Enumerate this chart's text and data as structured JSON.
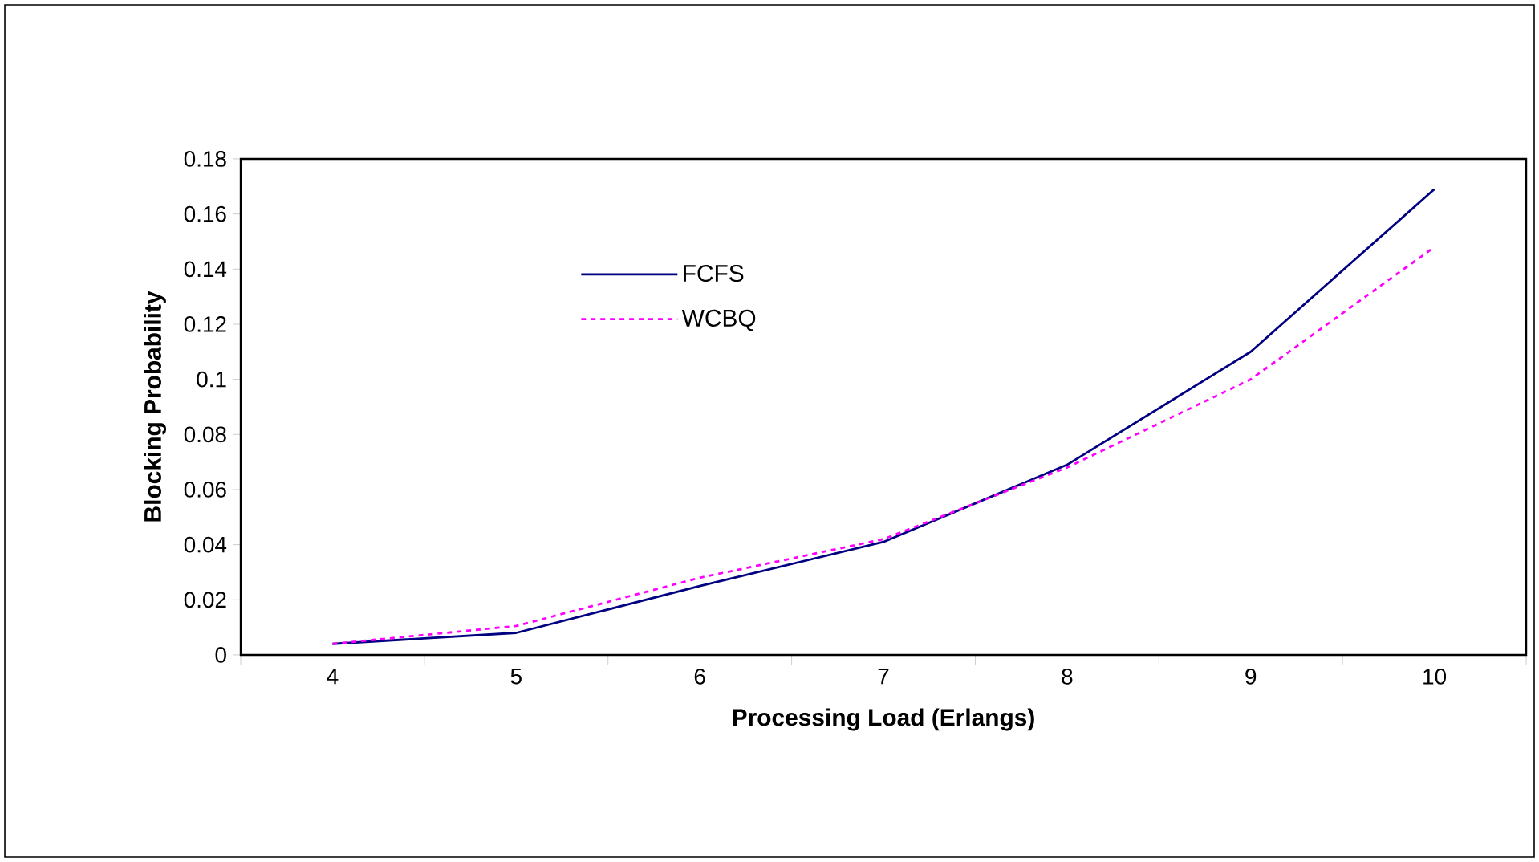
{
  "chart_data": {
    "type": "line",
    "xlabel": "Processing Load (Erlangs)",
    "ylabel": "Blocking Probability",
    "categories": [
      "4",
      "5",
      "6",
      "7",
      "8",
      "9",
      "10"
    ],
    "series": [
      {
        "name": "FCFS",
        "color": "#000080",
        "line_style": "solid",
        "values": [
          0.004,
          0.008,
          0.025,
          0.041,
          0.069,
          0.11,
          0.169
        ]
      },
      {
        "name": "WCBQ",
        "color": "#ff00ff",
        "line_style": "dashed",
        "values": [
          0.004,
          0.0105,
          0.028,
          0.042,
          0.068,
          0.1,
          0.148
        ]
      }
    ],
    "ylim": [
      0,
      0.18
    ],
    "yticks": [
      0,
      0.02,
      0.04,
      0.06,
      0.08,
      0.1,
      0.12,
      0.14,
      0.16,
      0.18
    ],
    "grid": false,
    "legend": "top left",
    "marker": "none"
  }
}
